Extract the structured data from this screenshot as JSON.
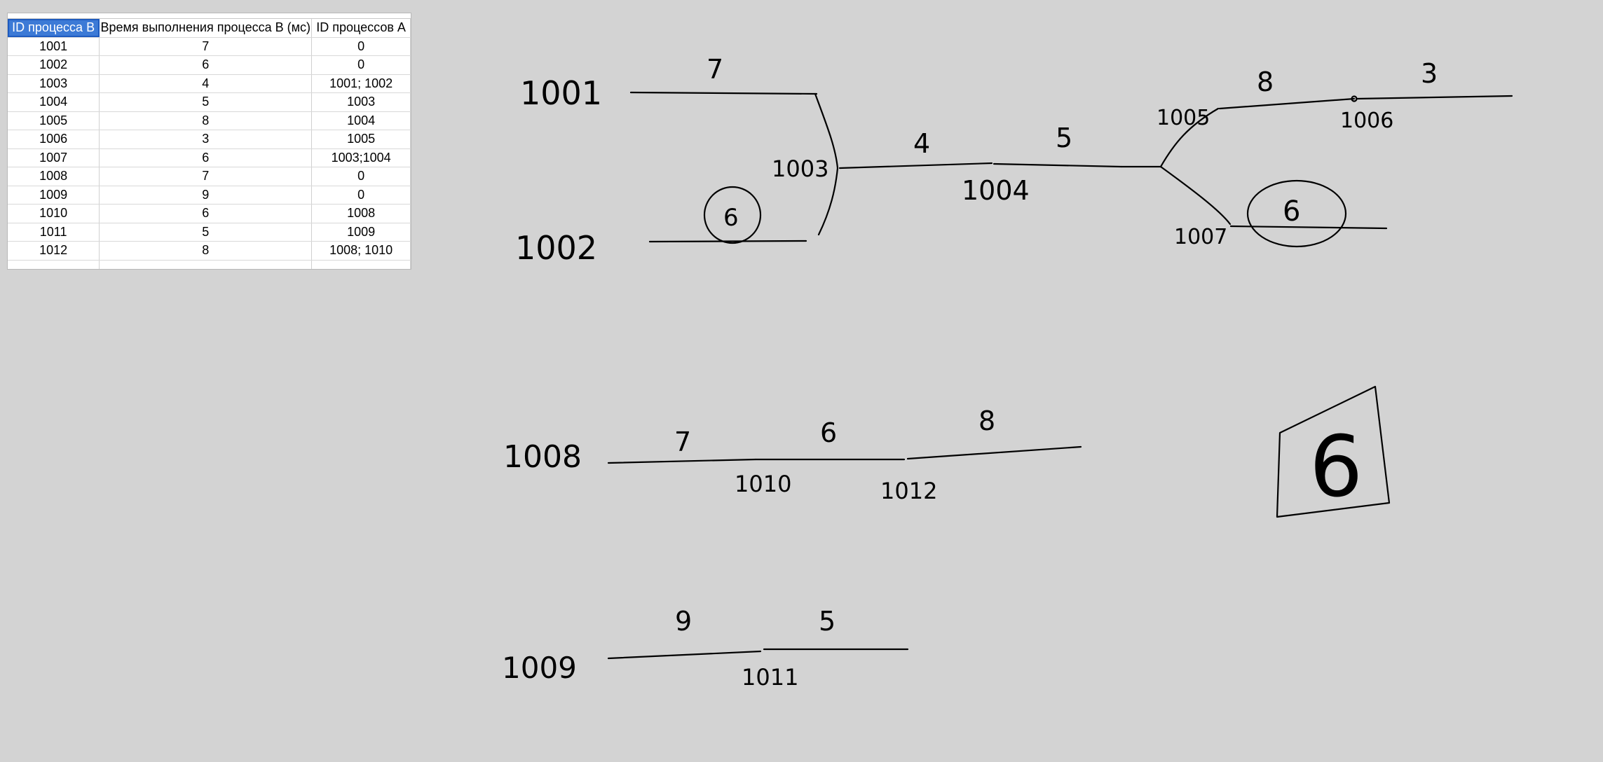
{
  "table": {
    "headers": [
      "ID процесса B",
      "Время выполнения процесса B (мс)",
      "ID процессов A"
    ],
    "rows": [
      [
        "1001",
        "7",
        "0"
      ],
      [
        "1002",
        "6",
        "0"
      ],
      [
        "1003",
        "4",
        "1001; 1002"
      ],
      [
        "1004",
        "5",
        "1003"
      ],
      [
        "1005",
        "8",
        "1004"
      ],
      [
        "1006",
        "3",
        "1005"
      ],
      [
        "1007",
        "6",
        "1003;1004"
      ],
      [
        "1008",
        "7",
        "0"
      ],
      [
        "1009",
        "9",
        "0"
      ],
      [
        "1010",
        "6",
        "1008"
      ],
      [
        "1011",
        "5",
        "1009"
      ],
      [
        "1012",
        "8",
        "1008; 1010"
      ]
    ],
    "selection_color": "#3c7ad6"
  },
  "sketch": {
    "labels": {
      "n1001": "1001",
      "n1002": "1002",
      "n1003": "1003",
      "n1004": "1004",
      "n1005": "1005",
      "n1006": "1006",
      "n1007": "1007",
      "n1008": "1008",
      "n1009": "1009",
      "n1010": "1010",
      "n1011": "1011",
      "n1012": "1012",
      "w7a": "7",
      "w6a": "6",
      "w4": "4",
      "w5a": "5",
      "w8a": "8",
      "w3": "3",
      "w6b": "6",
      "w7b": "7",
      "w6c": "6",
      "w8b": "8",
      "w9": "9",
      "w5b": "5",
      "result": "6"
    },
    "ink_color": "#000000",
    "background_color": "#d3d3d3"
  }
}
